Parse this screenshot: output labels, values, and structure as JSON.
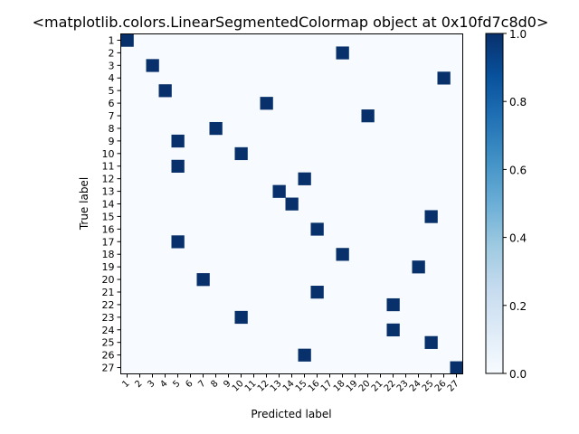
{
  "chart_data": {
    "type": "heatmap",
    "title": "<matplotlib.colors.LinearSegmentedColormap object at 0x10fd7c8d0>",
    "xlabel": "Predicted label",
    "ylabel": "True label",
    "x_tick_labels": [
      "1",
      "2",
      "3",
      "4",
      "5",
      "6",
      "7",
      "8",
      "9",
      "10",
      "11",
      "12",
      "13",
      "14",
      "15",
      "16",
      "17",
      "18",
      "19",
      "20",
      "21",
      "22",
      "23",
      "24",
      "25",
      "26",
      "27"
    ],
    "y_tick_labels": [
      "1",
      "2",
      "3",
      "4",
      "5",
      "6",
      "7",
      "8",
      "9",
      "10",
      "11",
      "12",
      "13",
      "14",
      "15",
      "16",
      "17",
      "18",
      "19",
      "20",
      "21",
      "22",
      "23",
      "24",
      "25",
      "26",
      "27"
    ],
    "cells": [
      {
        "true": "1",
        "pred": "1",
        "value": 1.0
      },
      {
        "true": "2",
        "pred": "18",
        "value": 1.0
      },
      {
        "true": "3",
        "pred": "3",
        "value": 1.0
      },
      {
        "true": "4",
        "pred": "26",
        "value": 1.0
      },
      {
        "true": "5",
        "pred": "4",
        "value": 1.0
      },
      {
        "true": "6",
        "pred": "12",
        "value": 1.0
      },
      {
        "true": "7",
        "pred": "20",
        "value": 1.0
      },
      {
        "true": "8",
        "pred": "8",
        "value": 1.0
      },
      {
        "true": "9",
        "pred": "5",
        "value": 1.0
      },
      {
        "true": "10",
        "pred": "10",
        "value": 1.0
      },
      {
        "true": "11",
        "pred": "5",
        "value": 1.0
      },
      {
        "true": "12",
        "pred": "15",
        "value": 1.0
      },
      {
        "true": "13",
        "pred": "13",
        "value": 1.0
      },
      {
        "true": "14",
        "pred": "14",
        "value": 1.0
      },
      {
        "true": "15",
        "pred": "25",
        "value": 1.0
      },
      {
        "true": "16",
        "pred": "16",
        "value": 1.0
      },
      {
        "true": "17",
        "pred": "5",
        "value": 1.0
      },
      {
        "true": "18",
        "pred": "18",
        "value": 1.0
      },
      {
        "true": "19",
        "pred": "24",
        "value": 1.0
      },
      {
        "true": "20",
        "pred": "7",
        "value": 1.0
      },
      {
        "true": "21",
        "pred": "16",
        "value": 1.0
      },
      {
        "true": "22",
        "pred": "22",
        "value": 1.0
      },
      {
        "true": "23",
        "pred": "10",
        "value": 1.0
      },
      {
        "true": "24",
        "pred": "22",
        "value": 1.0
      },
      {
        "true": "25",
        "pred": "25",
        "value": 1.0
      },
      {
        "true": "26",
        "pred": "15",
        "value": 1.0
      },
      {
        "true": "27",
        "pred": "27",
        "value": 1.0
      }
    ],
    "background_value": 0.0,
    "colorbar": {
      "range": [
        0.0,
        1.0
      ],
      "ticks": [
        "0.0",
        "0.2",
        "0.4",
        "0.6",
        "0.8",
        "1.0"
      ],
      "low_color": "#f7fbff",
      "high_color": "#08306b"
    },
    "grid": false,
    "legend": "none"
  }
}
